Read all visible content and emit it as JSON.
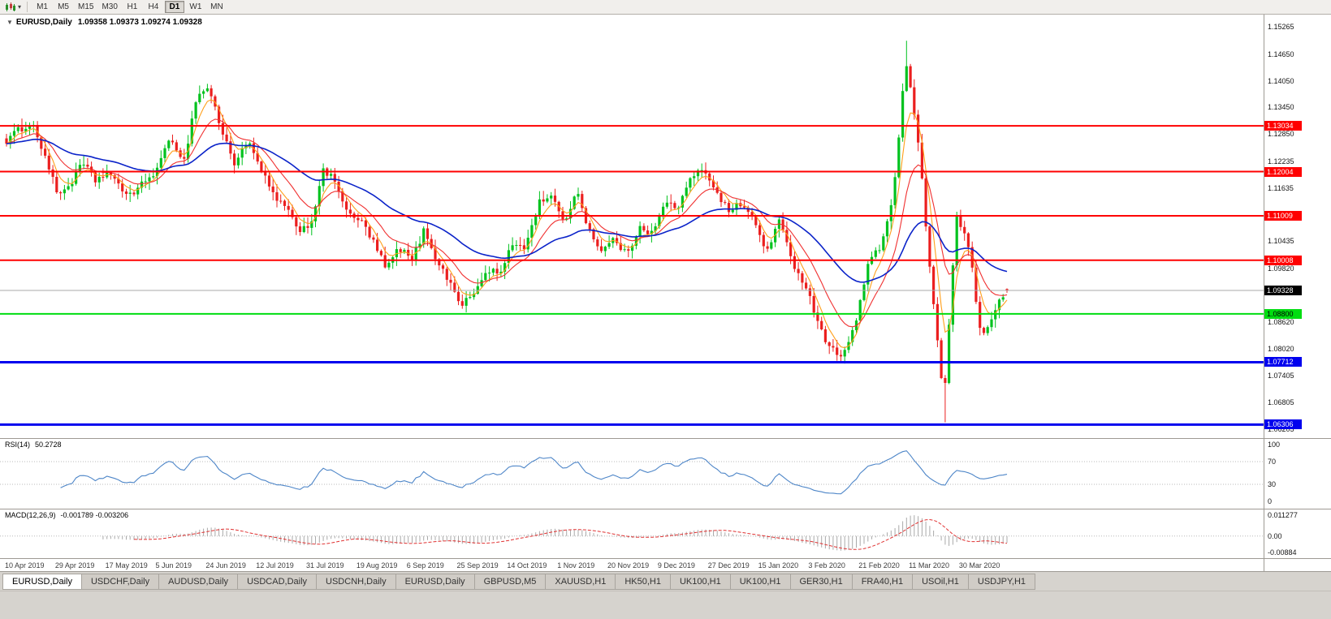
{
  "toolbar": {
    "timeframes": [
      "M1",
      "M5",
      "M15",
      "M30",
      "H1",
      "H4",
      "D1",
      "W1",
      "MN"
    ],
    "active_timeframe": "D1"
  },
  "header": {
    "symbol_period": "EURUSD,Daily",
    "ohlc": "1.09358 1.09373 1.09274 1.09328"
  },
  "price_axis": {
    "ticks": [
      "1.15265",
      "1.14650",
      "1.14050",
      "1.13450",
      "1.12850",
      "1.12235",
      "1.11635",
      "1.10435",
      "1.09820",
      "1.08620",
      "1.08020",
      "1.07405",
      "1.06805",
      "1.06205"
    ]
  },
  "levels": [
    {
      "label": "1.13034",
      "value": 1.13034,
      "color": "#ff0000",
      "text_color": "#ffffff",
      "thickness": 2,
      "kind": "resistance-line"
    },
    {
      "label": "1.12004",
      "value": 1.12004,
      "color": "#ff0000",
      "text_color": "#ffffff",
      "thickness": 2,
      "kind": "resistance-line"
    },
    {
      "label": "1.11009",
      "value": 1.11009,
      "color": "#ff0000",
      "text_color": "#ffffff",
      "thickness": 2,
      "kind": "resistance-line"
    },
    {
      "label": "1.10008",
      "value": 1.10008,
      "color": "#ff0000",
      "text_color": "#ffffff",
      "thickness": 2,
      "kind": "resistance-line"
    },
    {
      "label": "1.08800",
      "value": 1.088,
      "color": "#00dd11",
      "text_color": "#000000",
      "thickness": 2,
      "kind": "support-line"
    },
    {
      "label": "1.07712",
      "value": 1.07712,
      "color": "#0000ee",
      "text_color": "#ffffff",
      "thickness": 3,
      "kind": "support-line"
    },
    {
      "label": "1.06306",
      "value": 1.06306,
      "color": "#0000ee",
      "text_color": "#ffffff",
      "thickness": 3,
      "kind": "support-line"
    }
  ],
  "current_price": {
    "label": "1.09328",
    "value": 1.09328,
    "line_color": "#aaaaaa",
    "badge_bg": "#000000",
    "badge_text": "#ffffff"
  },
  "rsi": {
    "label": "RSI(14)",
    "value": "50.2728",
    "period": 14,
    "axis_ticks": [
      "100",
      "70",
      "30",
      "0"
    ],
    "line_color": "#4e86c8"
  },
  "macd": {
    "label": "MACD(12,26,9)",
    "values": "-0.001789 -0.003206",
    "axis_top": "0.011277",
    "axis_zero": "0.00",
    "axis_bottom": "-0.00884",
    "histogram_color": "#a9a9a9",
    "signal_color": "#e03131"
  },
  "date_axis": [
    "10 Apr 2019",
    "29 Apr 2019",
    "17 May 2019",
    "5 Jun 2019",
    "24 Jun 2019",
    "12 Jul 2019",
    "31 Jul 2019",
    "19 Aug 2019",
    "6 Sep 2019",
    "25 Sep 2019",
    "14 Oct 2019",
    "1 Nov 2019",
    "20 Nov 2019",
    "9 Dec 2019",
    "27 Dec 2019",
    "15 Jan 2020",
    "3 Feb 2020",
    "21 Feb 2020",
    "11 Mar 2020",
    "30 Mar 2020"
  ],
  "tabs": {
    "active_index": 0,
    "items": [
      "EURUSD,Daily",
      "USDCHF,Daily",
      "AUDUSD,Daily",
      "USDCAD,Daily",
      "USDCNH,Daily",
      "EURUSD,Daily",
      "GBPUSD,M5",
      "XAUUSD,H1",
      "HK50,H1",
      "UK100,H1",
      "UK100,H1",
      "GER30,H1",
      "FRA40,H1",
      "USOil,H1",
      "USDJPY,H1"
    ]
  },
  "chart_data": {
    "type": "candlestick",
    "symbol": "EURUSD",
    "period": "Daily",
    "num_candles": 260,
    "tick_every": 13,
    "noise": 0.0016,
    "wick": 0.002,
    "spike_high": 1.1495,
    "crash_low": 1.0636,
    "last_candle": {
      "o": 1.09358,
      "h": 1.09373,
      "l": 1.09274,
      "c": 1.09328
    },
    "bull_color": "#00c21e",
    "bear_color": "#eb1f1f",
    "ma": [
      {
        "type": "ema",
        "period": 5,
        "color": "#ff9f1a"
      },
      {
        "type": "ema",
        "period": 13,
        "color": "#f03030"
      },
      {
        "type": "ema",
        "period": 40,
        "color": "#0b23c9"
      }
    ],
    "anchor_closes": [
      1.127,
      1.1295,
      1.131,
      1.124,
      1.115,
      1.117,
      1.122,
      1.118,
      1.12,
      1.116,
      1.115,
      1.118,
      1.121,
      1.128,
      1.122,
      1.137,
      1.139,
      1.129,
      1.122,
      1.127,
      1.121,
      1.115,
      1.112,
      1.107,
      1.108,
      1.12,
      1.118,
      1.11,
      1.109,
      1.104,
      1.098,
      1.103,
      1.1,
      1.107,
      1.1,
      1.095,
      1.09,
      1.093,
      1.098,
      1.097,
      1.104,
      1.103,
      1.113,
      1.115,
      1.108,
      1.116,
      1.107,
      1.102,
      1.105,
      1.101,
      1.108,
      1.106,
      1.113,
      1.112,
      1.118,
      1.121,
      1.116,
      1.111,
      1.113,
      1.109,
      1.102,
      1.109,
      1.1,
      1.095,
      1.087,
      1.08,
      1.079,
      1.085,
      1.099,
      1.103,
      1.114,
      1.145,
      1.127,
      1.095,
      1.068,
      1.11,
      1.103,
      1.082,
      1.089,
      1.0933
    ]
  }
}
